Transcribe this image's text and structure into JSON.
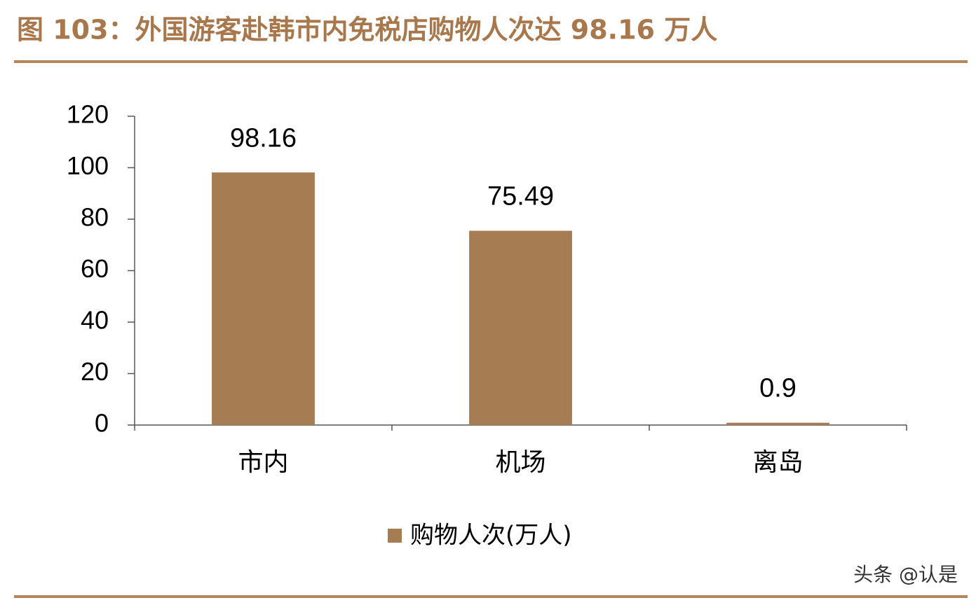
{
  "chart_data": {
    "type": "bar",
    "title": "图 103：外国游客赴韩市内免税店购物人次达 98.16 万人",
    "categories": [
      "市内",
      "机场",
      "离岛"
    ],
    "series": [
      {
        "name": "购物人次(万人)",
        "color": "#a67c52",
        "values": [
          98.16,
          75.49,
          0.9
        ]
      }
    ],
    "ylim": [
      0,
      120
    ],
    "yticks": [
      0,
      20,
      40,
      60,
      80,
      100,
      120
    ],
    "legend": "bottom"
  },
  "watermark": "头条 @认是"
}
